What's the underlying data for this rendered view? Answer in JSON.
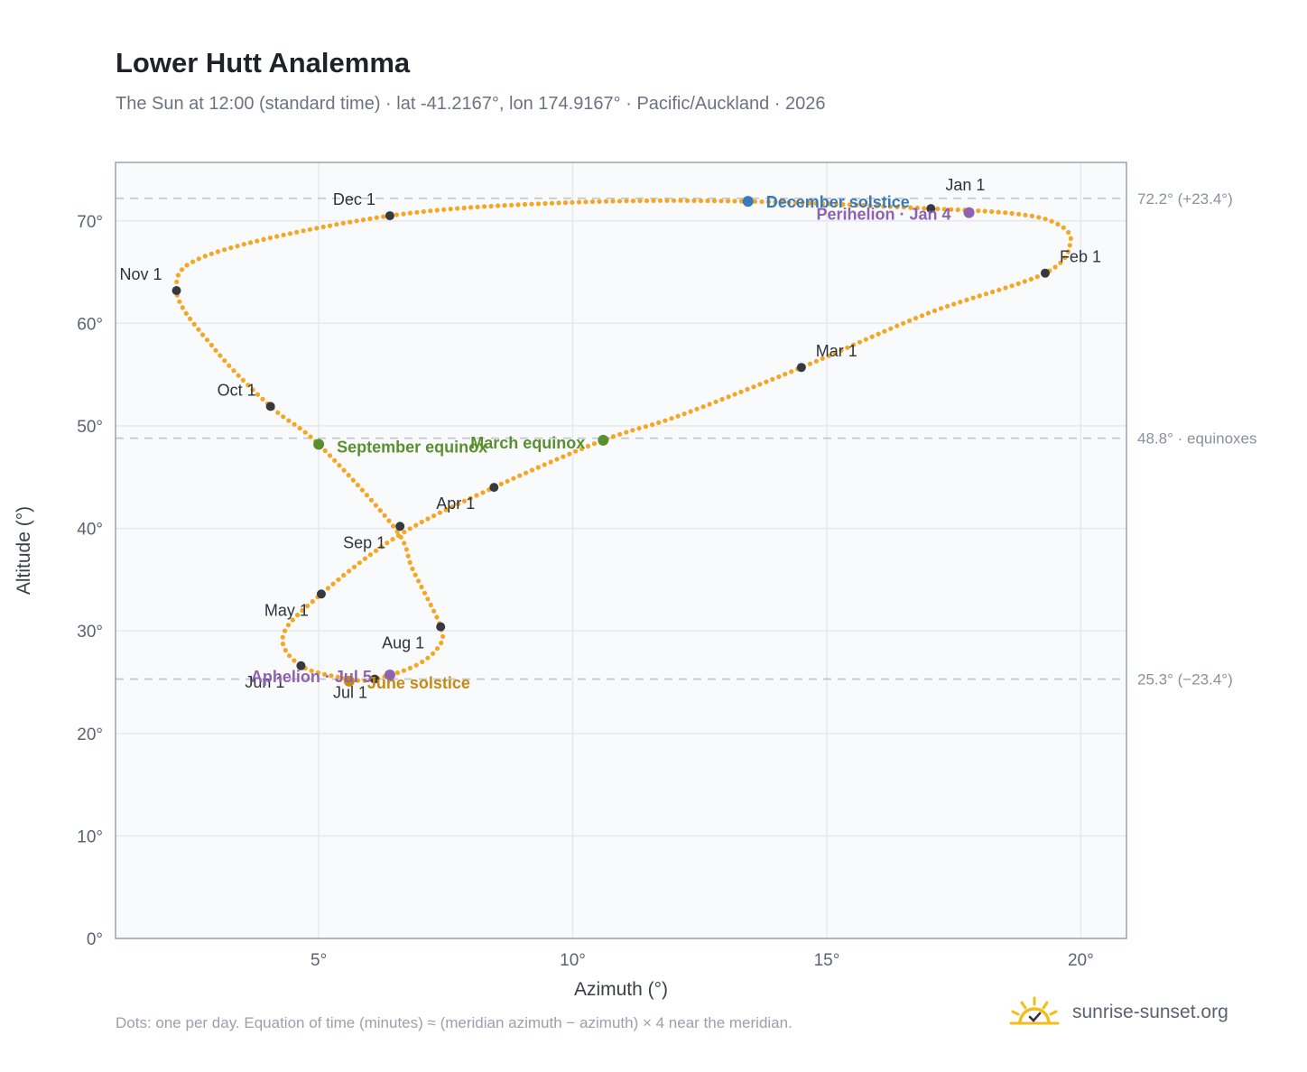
{
  "title": "Lower Hutt Analemma",
  "subtitle": "The Sun at 12:00 (standard time) · lat -41.2167°, lon 174.9167° · Pacific/Auckland · 2026",
  "footnote": "Dots: one per day. Equation of time (minutes) ≈ (meridian azimuth − azimuth) × 4 near the meridian.",
  "brand": {
    "text": "sunrise-sunset.org",
    "icon": "sun-logo-icon"
  },
  "colors": {
    "curve": "#f5a623",
    "month_dot": "#343a40",
    "solstice_december": "#3a7ab8",
    "solstice_june": "#c68a12",
    "equinox": "#5a8f2e",
    "apsis": "#8e62b0",
    "grid": "#e5e8ec",
    "ref_line": "#c3c8cf",
    "plot_bg": "#f8fafc",
    "frame": "#9aa3b0"
  },
  "chart_data": {
    "type": "scatter",
    "title": "Lower Hutt Analemma",
    "xlabel": "Azimuth (°)",
    "ylabel": "Altitude (°)",
    "xlim": [
      1,
      20.9
    ],
    "ylim": [
      0,
      75.7
    ],
    "xticks": [
      5,
      10,
      15,
      20
    ],
    "xtick_labels": [
      "5°",
      "10°",
      "15°",
      "20°"
    ],
    "yticks": [
      0,
      10,
      20,
      30,
      40,
      50,
      60,
      70
    ],
    "ytick_labels": [
      "0°",
      "10°",
      "20°",
      "30°",
      "40°",
      "50°",
      "60°",
      "70°"
    ],
    "grid": true,
    "path_anchors": [
      {
        "az": 17.05,
        "alt": 71.2
      },
      {
        "az": 18.7,
        "alt": 70.7
      },
      {
        "az": 19.5,
        "alt": 69.8
      },
      {
        "az": 19.8,
        "alt": 68.0
      },
      {
        "az": 19.3,
        "alt": 64.9
      },
      {
        "az": 17.0,
        "alt": 61.0
      },
      {
        "az": 14.5,
        "alt": 55.7
      },
      {
        "az": 12.1,
        "alt": 51.0
      },
      {
        "az": 10.6,
        "alt": 48.6
      },
      {
        "az": 8.45,
        "alt": 44.0
      },
      {
        "az": 6.6,
        "alt": 39.4
      },
      {
        "az": 5.05,
        "alt": 33.6
      },
      {
        "az": 4.3,
        "alt": 29.6
      },
      {
        "az": 4.65,
        "alt": 26.6
      },
      {
        "az": 5.6,
        "alt": 25.3
      },
      {
        "az": 6.1,
        "alt": 25.3
      },
      {
        "az": 6.9,
        "alt": 26.6
      },
      {
        "az": 7.35,
        "alt": 28.4
      },
      {
        "az": 7.4,
        "alt": 30.4
      },
      {
        "az": 6.85,
        "alt": 36.0
      },
      {
        "az": 6.5,
        "alt": 40.0
      },
      {
        "az": 5.0,
        "alt": 48.2
      },
      {
        "az": 4.05,
        "alt": 51.9
      },
      {
        "az": 2.95,
        "alt": 57.5
      },
      {
        "az": 2.2,
        "alt": 63.2
      },
      {
        "az": 2.9,
        "alt": 66.8
      },
      {
        "az": 6.4,
        "alt": 70.5
      },
      {
        "az": 10.0,
        "alt": 71.8
      },
      {
        "az": 13.45,
        "alt": 71.9
      },
      {
        "az": 17.05,
        "alt": 71.2
      }
    ],
    "months": [
      {
        "label": "Jan 1",
        "az": 17.05,
        "alt": 71.2
      },
      {
        "label": "Feb 1",
        "az": 19.3,
        "alt": 64.9
      },
      {
        "label": "Mar 1",
        "az": 14.5,
        "alt": 55.7
      },
      {
        "label": "Apr 1",
        "az": 8.45,
        "alt": 44.0
      },
      {
        "label": "May 1",
        "az": 5.05,
        "alt": 33.6
      },
      {
        "label": "Jun 1",
        "az": 4.65,
        "alt": 26.6
      },
      {
        "label": "Jul 1",
        "az": 6.1,
        "alt": 25.3
      },
      {
        "label": "Aug 1",
        "az": 7.4,
        "alt": 30.4
      },
      {
        "label": "Sep 1",
        "az": 6.6,
        "alt": 40.2
      },
      {
        "label": "Oct 1",
        "az": 4.05,
        "alt": 51.9
      },
      {
        "label": "Nov 1",
        "az": 2.2,
        "alt": 63.2
      },
      {
        "label": "Dec 1",
        "az": 6.4,
        "alt": 70.5
      }
    ],
    "events": [
      {
        "label": "December solstice",
        "az": 13.45,
        "alt": 71.9,
        "color_key": "solstice_december"
      },
      {
        "label": "Perihelion · Jan 4",
        "az": 17.8,
        "alt": 70.8,
        "color_key": "apsis"
      },
      {
        "label": "March equinox",
        "az": 10.6,
        "alt": 48.6,
        "color_key": "equinox"
      },
      {
        "label": "September equinox",
        "az": 5.0,
        "alt": 48.2,
        "color_key": "equinox"
      },
      {
        "label": "June solstice",
        "az": 5.6,
        "alt": 25.1,
        "color_key": "solstice_june"
      },
      {
        "label": "Aphelion · Jul 5",
        "az": 6.4,
        "alt": 25.7,
        "color_key": "apsis"
      }
    ],
    "reference_lines": [
      {
        "alt": 72.2,
        "label": "72.2° (+23.4°)"
      },
      {
        "alt": 48.8,
        "label": "48.8° · equinoxes"
      },
      {
        "alt": 25.3,
        "label": "25.3° (−23.4°)"
      }
    ]
  }
}
